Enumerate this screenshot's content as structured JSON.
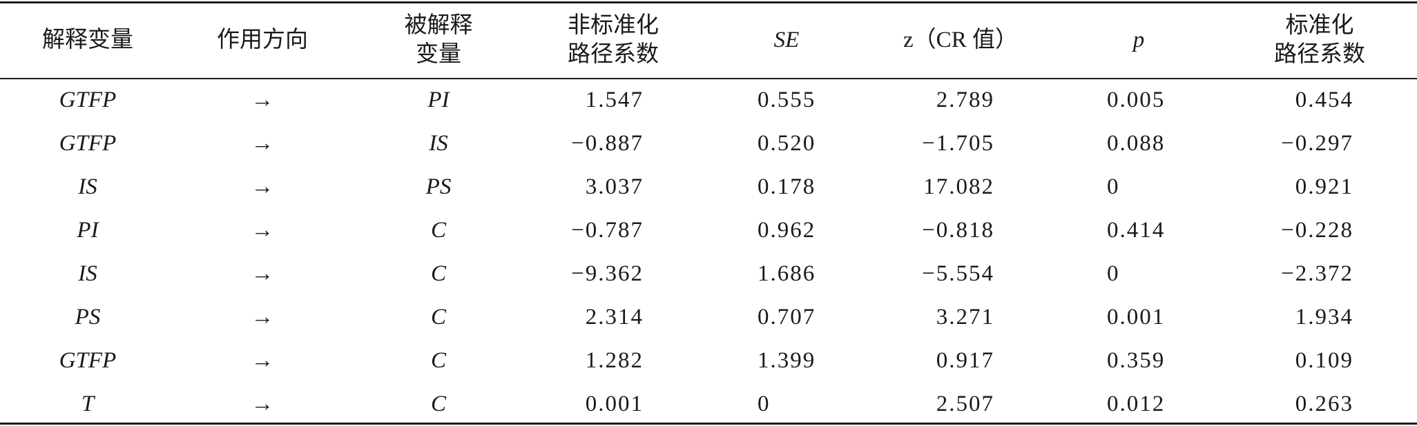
{
  "table": {
    "header": [
      "解释变量",
      "作用方向",
      "被解释\n变量",
      "非标准化\n路径系数",
      "SE",
      "z（CR 值）",
      "p",
      "标准化\n路径系数"
    ],
    "rows": [
      [
        "GTFP",
        "→",
        "PI",
        "1.547",
        "0.555",
        "2.789",
        "0.005",
        "0.454"
      ],
      [
        "GTFP",
        "→",
        "IS",
        "−0.887",
        "0.520",
        "−1.705",
        "0.088",
        "−0.297"
      ],
      [
        "IS",
        "→",
        "PS",
        "3.037",
        "0.178",
        "17.082",
        "0",
        "0.921"
      ],
      [
        "PI",
        "→",
        "C",
        "−0.787",
        "0.962",
        "−0.818",
        "0.414",
        "−0.228"
      ],
      [
        "IS",
        "→",
        "C",
        "−9.362",
        "1.686",
        "−5.554",
        "0",
        "−2.372"
      ],
      [
        "PS",
        "→",
        "C",
        "2.314",
        "0.707",
        "3.271",
        "0.001",
        "1.934"
      ],
      [
        "GTFP",
        "→",
        "C",
        "1.282",
        "1.399",
        "0.917",
        "0.359",
        "0.109"
      ],
      [
        "T",
        "→",
        "C",
        "0.001",
        "0",
        "2.507",
        "0.012",
        "0.263"
      ]
    ]
  }
}
